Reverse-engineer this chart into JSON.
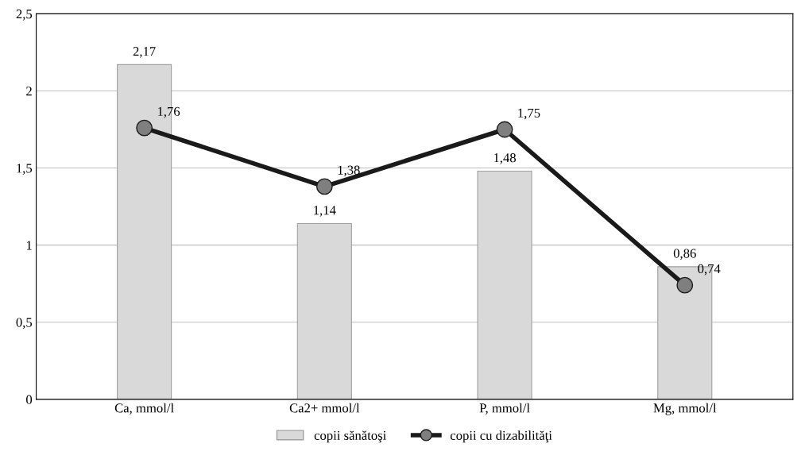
{
  "chart_data": {
    "type": "bar",
    "categories": [
      "Ca, mmol/l",
      "Ca2+ mmol/l",
      "P, mmol/l",
      "Mg, mmol/l"
    ],
    "series": [
      {
        "name": "copii sănătoşi",
        "color": "#d9d9d9",
        "values": [
          2.17,
          1.14,
          1.48,
          0.86
        ],
        "value_labels": [
          "2,17",
          "1,14",
          "1,48",
          "0,86"
        ]
      },
      {
        "name": "copii cu dizabilităţi",
        "type": "line",
        "color": "#1a1a1a",
        "marker": "circle",
        "values": [
          1.76,
          1.38,
          1.75,
          0.74
        ],
        "value_labels": [
          "1,76",
          "1,38",
          "1,75",
          "0,74"
        ]
      }
    ],
    "ylim": [
      0,
      2.5
    ],
    "yticks": [
      0,
      {
        "value": 0.5,
        "label": "0,5"
      },
      1,
      {
        "value": 1.5,
        "label": "1,5"
      },
      2,
      {
        "value": 2.5,
        "label": "2,5"
      }
    ],
    "grid": "y",
    "legend": "bottom"
  }
}
